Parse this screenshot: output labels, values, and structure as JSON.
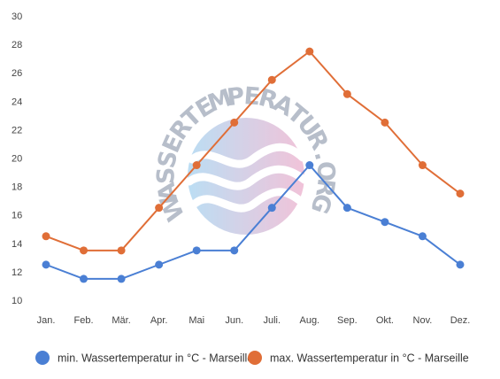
{
  "chart_data": {
    "type": "line",
    "categories": [
      "Jan.",
      "Feb.",
      "Mär.",
      "Apr.",
      "Mai",
      "Jun.",
      "Juli.",
      "Aug.",
      "Sep.",
      "Okt.",
      "Nov.",
      "Dez."
    ],
    "ylim": [
      10,
      30
    ],
    "yticks": [
      10,
      12,
      14,
      16,
      18,
      20,
      22,
      24,
      26,
      28,
      30
    ],
    "grid": false,
    "legend_position": "bottom",
    "series": [
      {
        "name": "min. Wassertemperatur in °C - Marseille",
        "color": "#4a7fd4",
        "values": [
          12.5,
          11.5,
          11.5,
          12.5,
          13.5,
          13.5,
          16.5,
          19.5,
          16.5,
          15.5,
          14.5,
          12.5
        ]
      },
      {
        "name": "max. Wassertemperatur in °C - Marseille",
        "color": "#e06e37",
        "values": [
          14.5,
          13.5,
          13.5,
          16.5,
          19.5,
          22.5,
          25.5,
          27.5,
          24.5,
          22.5,
          19.5,
          17.5
        ]
      }
    ]
  },
  "watermark": {
    "text": "WASSERTEMPERATUR.ORG"
  }
}
